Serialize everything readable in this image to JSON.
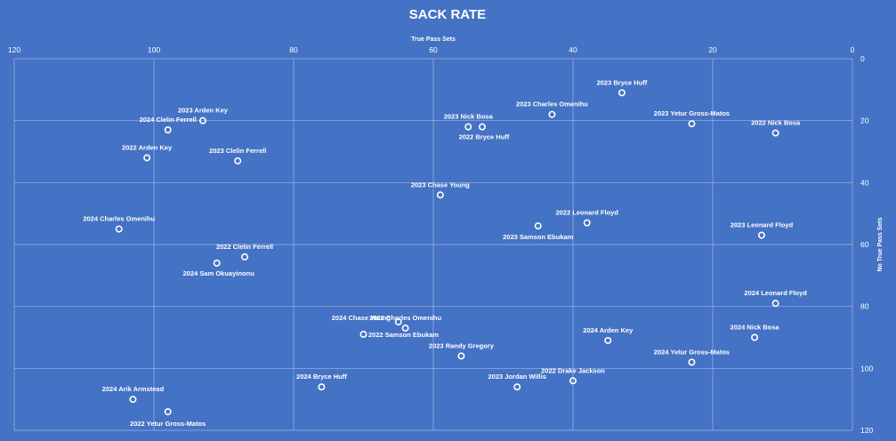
{
  "chart_data": {
    "type": "scatter",
    "title": "SACK RATE",
    "xlabel": "True Pass Sets",
    "ylabel": "No True Pass Sets",
    "xlim": [
      120,
      0
    ],
    "ylim": [
      0,
      120
    ],
    "x_ticks": [
      "120",
      "100",
      "80",
      "60",
      "40",
      "20",
      "0"
    ],
    "y_ticks": [
      "0",
      "20",
      "40",
      "60",
      "80",
      "100",
      "120"
    ],
    "x_reversed": true,
    "x_axis_position": "top",
    "y_axis_position": "right",
    "grid": true,
    "points": [
      {
        "label": "2023 Bryce Huff",
        "x": 33,
        "y": 11
      },
      {
        "label": "2023 Charles Omenihu",
        "x": 43,
        "y": 18
      },
      {
        "label": "2023 Yetur Gross-Matos",
        "x": 23,
        "y": 21
      },
      {
        "label": "2022 Nick Bosa",
        "x": 11,
        "y": 24
      },
      {
        "label": "2023 Nick Bosa",
        "x": 55,
        "y": 22
      },
      {
        "label": "2022 Bryce Huff",
        "x": 53,
        "y": 22
      },
      {
        "label": "2023 Arden Key",
        "x": 93,
        "y": 20
      },
      {
        "label": "2024 Clelin Ferrell",
        "x": 98,
        "y": 23
      },
      {
        "label": "2022 Arden Key",
        "x": 101,
        "y": 32
      },
      {
        "label": "2023 Clelin Ferrell",
        "x": 88,
        "y": 33
      },
      {
        "label": "2023 Chase Young",
        "x": 59,
        "y": 44
      },
      {
        "label": "2022 Leonard Floyd",
        "x": 38,
        "y": 53
      },
      {
        "label": "2023 Samson Ebukam",
        "x": 45,
        "y": 54
      },
      {
        "label": "2023 Leonard Floyd",
        "x": 13,
        "y": 57
      },
      {
        "label": "2024 Charles Omenihu",
        "x": 105,
        "y": 55
      },
      {
        "label": "2022 Clelin Ferrell",
        "x": 87,
        "y": 64
      },
      {
        "label": "2024 Sam Okuayinonu",
        "x": 91,
        "y": 66
      },
      {
        "label": "2024 Leonard Floyd",
        "x": 11,
        "y": 79
      },
      {
        "label": "2022 Charles Omenihu",
        "x": 64,
        "y": 87
      },
      {
        "label": "2024 Chase Young",
        "x": 65,
        "y": 85
      },
      {
        "label": "2022 Samson Ebukam",
        "x": 70,
        "y": 89
      },
      {
        "label": "2024 Nick Bosa",
        "x": 14,
        "y": 90
      },
      {
        "label": "2024 Arden Key",
        "x": 35,
        "y": 91
      },
      {
        "label": "2023 Randy Gregory",
        "x": 56,
        "y": 96
      },
      {
        "label": "2024 Yetur Gross-Matos",
        "x": 23,
        "y": 98
      },
      {
        "label": "2022 Drake Jackson",
        "x": 40,
        "y": 104
      },
      {
        "label": "2023 Jordan Willis",
        "x": 48,
        "y": 106
      },
      {
        "label": "2024 Bryce Huff",
        "x": 76,
        "y": 106
      },
      {
        "label": "2024 Arik Armstead",
        "x": 103,
        "y": 110
      },
      {
        "label": "2022 Yetur Gross-Matos",
        "x": 98,
        "y": 114
      }
    ]
  }
}
